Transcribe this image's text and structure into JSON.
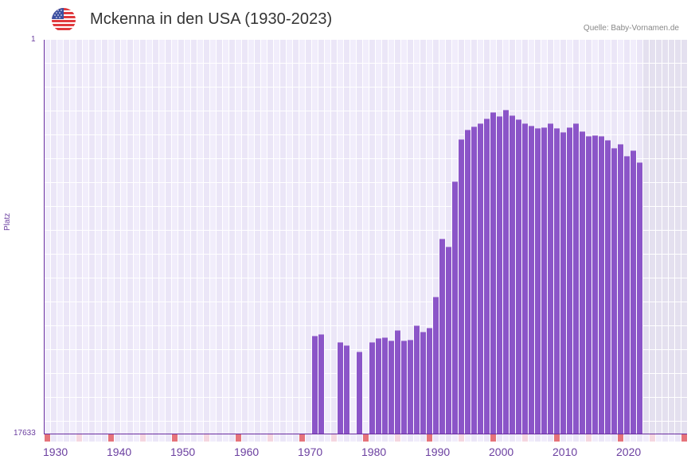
{
  "header": {
    "title": "Mckenna in den USA (1930-2023)",
    "source": "Quelle: Baby-Vornamen.de",
    "flag_icon": "us-flag-icon"
  },
  "axis": {
    "y_top_label": "1",
    "y_bottom_label": "17633",
    "y_title": "Platz",
    "x_labels": [
      "1930",
      "1940",
      "1950",
      "1960",
      "1970",
      "1980",
      "1990",
      "2000",
      "2010",
      "2020"
    ]
  },
  "colors": {
    "bar": "#8b55c8",
    "axis": "#6b2fa0",
    "grid_a": "#f1edfb",
    "grid_b": "#ebe6f7",
    "future": "#e4e0ef",
    "marker_decade": "#e5737a",
    "marker_half": "#f5d6e0"
  },
  "chart_data": {
    "type": "bar",
    "title": "Mckenna in den USA (1930-2023)",
    "xlabel": "",
    "ylabel": "Platz",
    "ylim": [
      17633,
      1
    ],
    "y_inverted": true,
    "x_range": [
      1930,
      2028
    ],
    "grid": true,
    "x": [
      1972,
      1973,
      1976,
      1977,
      1979,
      1981,
      1982,
      1983,
      1984,
      1985,
      1986,
      1987,
      1988,
      1989,
      1990,
      1991,
      1992,
      1993,
      1994,
      1995,
      1996,
      1997,
      1998,
      1999,
      2000,
      2001,
      2002,
      2003,
      2004,
      2005,
      2006,
      2007,
      2008,
      2009,
      2010,
      2011,
      2012,
      2013,
      2014,
      2015,
      2016,
      2017,
      2018,
      2019,
      2020,
      2021,
      2022,
      2023
    ],
    "values": [
      13267,
      13196,
      13552,
      13694,
      13979,
      13552,
      13374,
      13339,
      13481,
      13018,
      13481,
      13445,
      12804,
      13089,
      12911,
      11522,
      8921,
      9277,
      6356,
      4468,
      4041,
      3898,
      3756,
      3542,
      3257,
      3435,
      3150,
      3399,
      3577,
      3756,
      3862,
      3969,
      3934,
      3756,
      3969,
      4148,
      3934,
      3756,
      4112,
      4326,
      4290,
      4326,
      4504,
      4860,
      4682,
      5216,
      4967,
      5501
    ]
  }
}
